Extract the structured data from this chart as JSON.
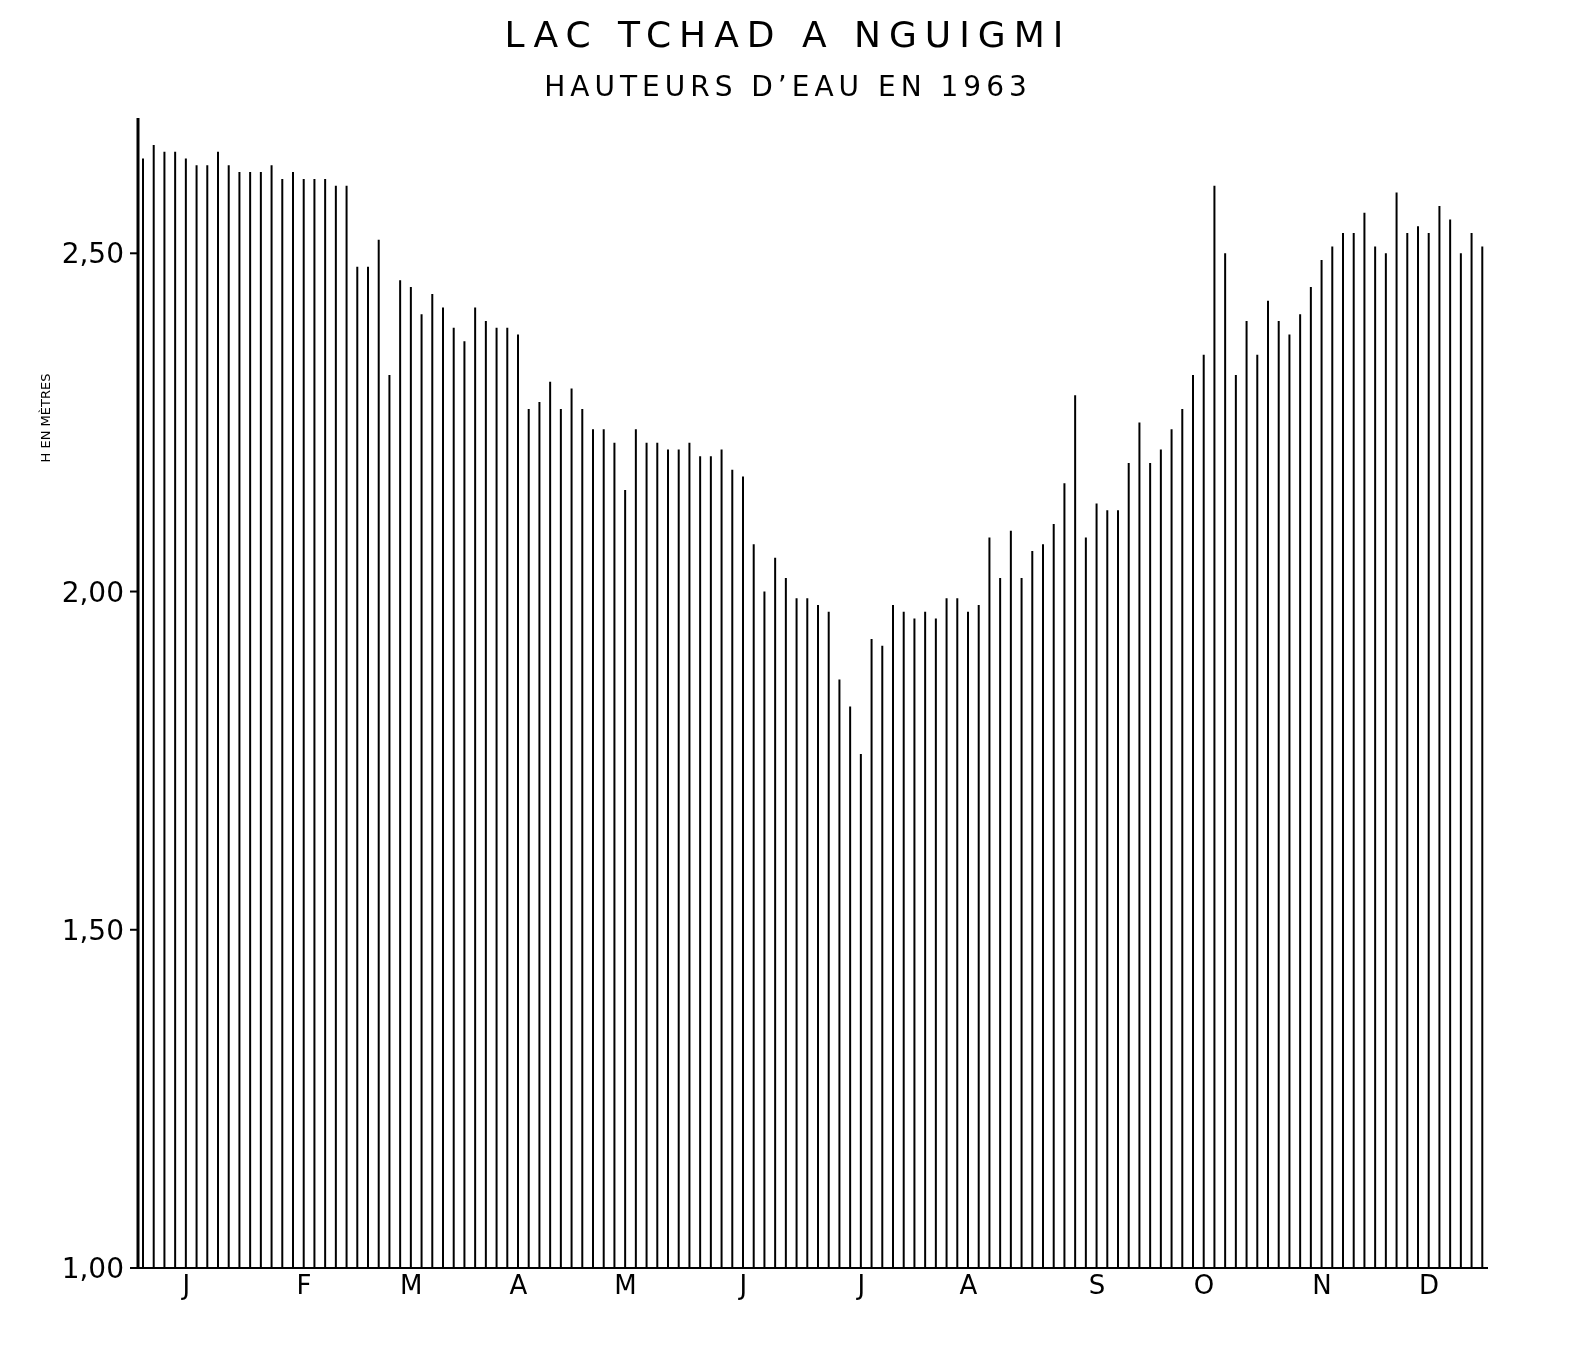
{
  "chart_data": {
    "type": "bar",
    "title": "LAC TCHAD A NGUIGMI",
    "subtitle": "HAUTEURS D’EAU EN 1963",
    "ylabel": "H EN MÈTRES",
    "categories": [
      null,
      null,
      null,
      null,
      "J",
      null,
      null,
      null,
      null,
      null,
      null,
      null,
      null,
      null,
      null,
      "F",
      null,
      null,
      null,
      null,
      null,
      null,
      null,
      null,
      null,
      "M",
      null,
      null,
      null,
      null,
      null,
      null,
      null,
      null,
      null,
      "A",
      null,
      null,
      null,
      null,
      null,
      null,
      null,
      null,
      null,
      "M",
      null,
      null,
      null,
      null,
      null,
      null,
      null,
      null,
      null,
      null,
      "J",
      null,
      null,
      null,
      null,
      null,
      null,
      null,
      null,
      null,
      null,
      "J",
      null,
      null,
      null,
      null,
      null,
      null,
      null,
      null,
      null,
      "A",
      null,
      null,
      null,
      null,
      null,
      null,
      null,
      null,
      null,
      null,
      null,
      "S",
      null,
      null,
      null,
      null,
      null,
      null,
      null,
      null,
      null,
      "O",
      null,
      null,
      null,
      null,
      null,
      null,
      null,
      null,
      null,
      null,
      "N",
      null,
      null,
      null,
      null,
      null,
      null,
      null,
      null,
      null,
      "D",
      null,
      null,
      null,
      null,
      null
    ],
    "values": [
      2.64,
      2.66,
      2.65,
      2.65,
      2.64,
      2.63,
      2.63,
      2.65,
      2.63,
      2.62,
      2.62,
      2.62,
      2.63,
      2.61,
      2.62,
      2.61,
      2.61,
      2.61,
      2.6,
      2.6,
      2.48,
      2.48,
      2.52,
      2.32,
      2.46,
      2.45,
      2.41,
      2.44,
      2.42,
      2.39,
      2.37,
      2.42,
      2.4,
      2.39,
      2.39,
      2.38,
      2.27,
      2.28,
      2.31,
      2.27,
      2.3,
      2.27,
      2.24,
      2.24,
      2.22,
      2.15,
      2.24,
      2.22,
      2.22,
      2.21,
      2.21,
      2.22,
      2.2,
      2.2,
      2.21,
      2.18,
      2.17,
      2.07,
      2.0,
      2.05,
      2.02,
      1.99,
      1.99,
      1.98,
      1.97,
      1.87,
      1.83,
      1.76,
      1.93,
      1.92,
      1.98,
      1.97,
      1.96,
      1.97,
      1.96,
      1.99,
      1.99,
      1.97,
      1.98,
      2.08,
      2.02,
      2.09,
      2.02,
      2.06,
      2.07,
      2.1,
      2.16,
      2.29,
      2.08,
      2.13,
      2.12,
      2.12,
      2.19,
      2.25,
      2.19,
      2.21,
      2.24,
      2.27,
      2.32,
      2.35,
      2.6,
      2.5,
      2.32,
      2.4,
      2.35,
      2.43,
      2.4,
      2.38,
      2.41,
      2.45,
      2.49,
      2.51,
      2.53,
      2.53,
      2.56,
      2.51,
      2.5,
      2.59,
      2.53,
      2.54,
      2.53,
      2.57,
      2.55,
      2.5,
      2.53,
      2.51
    ],
    "color": "#000000",
    "ylim": [
      1.0,
      2.7
    ],
    "yticks": [
      {
        "value": 1.0,
        "label": "1,00"
      },
      {
        "value": 1.5,
        "label": "1,50"
      },
      {
        "value": 2.0,
        "label": "2,00"
      },
      {
        "value": 2.5,
        "label": "2,50"
      }
    ],
    "grid": false,
    "legend": false
  }
}
